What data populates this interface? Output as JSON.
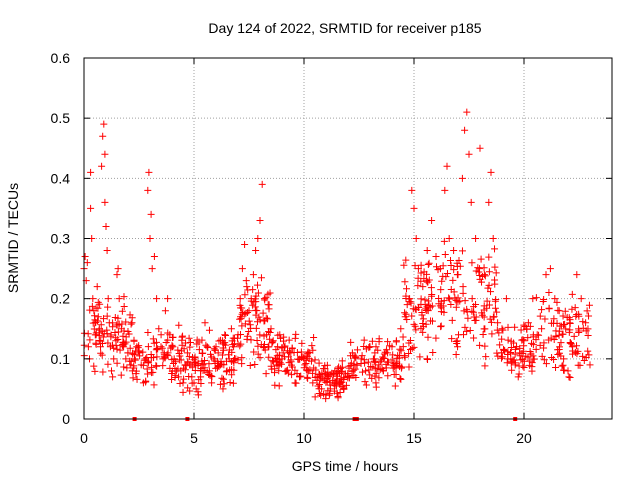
{
  "chart_data": {
    "type": "scatter",
    "title": "Day 124 of 2022, SRMTID for receiver p185",
    "xlabel": "GPS time / hours",
    "ylabel": "SRMTID / TECUs",
    "xlim": [
      0,
      24
    ],
    "ylim": [
      0,
      0.6
    ],
    "x_ticks": [
      0,
      5,
      10,
      15,
      20
    ],
    "x_tick_labels": [
      "0",
      "5",
      "10",
      "15",
      "20"
    ],
    "y_ticks": [
      0,
      0.1,
      0.2,
      0.3,
      0.4,
      0.5,
      0.6
    ],
    "y_tick_labels": [
      "0",
      "0.1",
      "0.2",
      "0.3",
      "0.4",
      "0.5",
      "0.6"
    ],
    "grid": true,
    "marker": "+",
    "series_color": "#ff0000",
    "grid_color": "#a0a0a0",
    "series": [
      {
        "name": "SRMTID",
        "points": [
          [
            0.0,
            0.25
          ],
          [
            0.05,
            0.27
          ],
          [
            0.1,
            0.23
          ],
          [
            0.15,
            0.26
          ],
          [
            0.2,
            0.12
          ],
          [
            0.25,
            0.1
          ],
          [
            0.3,
            0.41
          ],
          [
            0.3,
            0.35
          ],
          [
            0.35,
            0.3
          ],
          [
            0.4,
            0.2
          ],
          [
            0.45,
            0.18
          ],
          [
            0.5,
            0.16
          ],
          [
            0.55,
            0.14
          ],
          [
            0.6,
            0.22
          ],
          [
            0.65,
            0.17
          ],
          [
            0.7,
            0.15
          ],
          [
            0.75,
            0.12
          ],
          [
            0.8,
            0.42
          ],
          [
            0.85,
            0.47
          ],
          [
            0.9,
            0.49
          ],
          [
            0.95,
            0.44
          ],
          [
            0.95,
            0.36
          ],
          [
            1.0,
            0.32
          ],
          [
            1.05,
            0.28
          ],
          [
            1.1,
            0.2
          ],
          [
            1.15,
            0.16
          ],
          [
            1.2,
            0.12
          ],
          [
            1.25,
            0.08
          ],
          [
            1.3,
            0.07
          ],
          [
            1.35,
            0.1
          ],
          [
            1.45,
            0.13
          ],
          [
            1.5,
            0.24
          ],
          [
            1.55,
            0.25
          ],
          [
            1.6,
            0.2
          ],
          [
            1.7,
            0.15
          ],
          [
            1.8,
            0.12
          ],
          [
            1.9,
            0.1
          ],
          [
            2.0,
            0.11
          ],
          [
            2.1,
            0.09
          ],
          [
            2.2,
            0.08
          ],
          [
            2.3,
            0.1
          ],
          [
            2.4,
            0.12
          ],
          [
            2.5,
            0.11
          ],
          [
            2.6,
            0.09
          ],
          [
            2.7,
            0.06
          ],
          [
            2.8,
            0.1
          ],
          [
            2.9,
            0.38
          ],
          [
            2.95,
            0.41
          ],
          [
            3.0,
            0.3
          ],
          [
            3.05,
            0.34
          ],
          [
            3.1,
            0.25
          ],
          [
            3.2,
            0.27
          ],
          [
            3.3,
            0.2
          ],
          [
            3.4,
            0.15
          ],
          [
            3.5,
            0.12
          ],
          [
            3.6,
            0.1
          ],
          [
            3.7,
            0.18
          ],
          [
            3.8,
            0.2
          ],
          [
            3.9,
            0.14
          ],
          [
            4.0,
            0.12
          ],
          [
            4.1,
            0.1
          ],
          [
            4.2,
            0.08
          ],
          [
            4.3,
            0.07
          ],
          [
            4.4,
            0.08
          ],
          [
            4.5,
            0.06
          ],
          [
            4.6,
            0.09
          ],
          [
            4.7,
            0.11
          ],
          [
            4.8,
            0.09
          ],
          [
            4.9,
            0.07
          ],
          [
            5.0,
            0.06
          ],
          [
            5.1,
            0.05
          ],
          [
            5.2,
            0.04
          ],
          [
            5.3,
            0.07
          ],
          [
            5.4,
            0.09
          ],
          [
            5.5,
            0.16
          ],
          [
            5.6,
            0.12
          ],
          [
            5.7,
            0.08
          ],
          [
            5.8,
            0.06
          ],
          [
            5.9,
            0.1
          ],
          [
            6.0,
            0.12
          ],
          [
            6.1,
            0.11
          ],
          [
            6.2,
            0.09
          ],
          [
            6.3,
            0.13
          ],
          [
            6.4,
            0.14
          ],
          [
            6.5,
            0.08
          ],
          [
            6.6,
            0.1
          ],
          [
            6.7,
            0.15
          ],
          [
            6.8,
            0.12
          ],
          [
            6.9,
            0.1
          ],
          [
            7.0,
            0.14
          ],
          [
            7.1,
            0.2
          ],
          [
            7.2,
            0.25
          ],
          [
            7.3,
            0.29
          ],
          [
            7.4,
            0.22
          ],
          [
            7.5,
            0.18
          ],
          [
            7.6,
            0.2
          ],
          [
            7.7,
            0.24
          ],
          [
            7.8,
            0.28
          ],
          [
            7.9,
            0.3
          ],
          [
            8.0,
            0.33
          ],
          [
            8.1,
            0.39
          ],
          [
            8.2,
            0.2
          ],
          [
            8.3,
            0.14
          ],
          [
            8.4,
            0.12
          ],
          [
            8.5,
            0.15
          ],
          [
            8.6,
            0.13
          ],
          [
            8.7,
            0.1
          ],
          [
            8.8,
            0.12
          ],
          [
            8.9,
            0.14
          ],
          [
            9.0,
            0.1
          ],
          [
            9.2,
            0.08
          ],
          [
            9.4,
            0.11
          ],
          [
            9.6,
            0.06
          ],
          [
            9.8,
            0.07
          ],
          [
            10.0,
            0.1
          ],
          [
            10.2,
            0.08
          ],
          [
            10.4,
            0.06
          ],
          [
            10.6,
            0.07
          ],
          [
            10.8,
            0.05
          ],
          [
            11.0,
            0.04
          ],
          [
            11.2,
            0.05
          ],
          [
            11.4,
            0.08
          ],
          [
            11.6,
            0.06
          ],
          [
            11.8,
            0.05
          ],
          [
            12.0,
            0.07
          ],
          [
            12.2,
            0.11
          ],
          [
            12.4,
            0.09
          ],
          [
            12.6,
            0.1
          ],
          [
            12.8,
            0.08
          ],
          [
            13.0,
            0.12
          ],
          [
            13.2,
            0.1
          ],
          [
            13.4,
            0.09
          ],
          [
            13.6,
            0.08
          ],
          [
            13.8,
            0.11
          ],
          [
            14.0,
            0.12
          ],
          [
            14.2,
            0.13
          ],
          [
            14.4,
            0.15
          ],
          [
            14.6,
            0.17
          ],
          [
            14.8,
            0.2
          ],
          [
            14.9,
            0.38
          ],
          [
            15.0,
            0.35
          ],
          [
            15.1,
            0.3
          ],
          [
            15.2,
            0.25
          ],
          [
            15.4,
            0.22
          ],
          [
            15.6,
            0.28
          ],
          [
            15.8,
            0.33
          ],
          [
            16.0,
            0.27
          ],
          [
            16.2,
            0.25
          ],
          [
            16.4,
            0.38
          ],
          [
            16.5,
            0.42
          ],
          [
            16.6,
            0.3
          ],
          [
            16.8,
            0.28
          ],
          [
            17.0,
            0.24
          ],
          [
            17.2,
            0.4
          ],
          [
            17.3,
            0.48
          ],
          [
            17.4,
            0.51
          ],
          [
            17.5,
            0.44
          ],
          [
            17.6,
            0.36
          ],
          [
            17.8,
            0.3
          ],
          [
            18.0,
            0.45
          ],
          [
            18.2,
            0.24
          ],
          [
            18.4,
            0.36
          ],
          [
            18.5,
            0.41
          ],
          [
            18.6,
            0.3
          ],
          [
            18.8,
            0.16
          ],
          [
            19.0,
            0.15
          ],
          [
            19.2,
            0.2
          ],
          [
            19.4,
            0.1
          ],
          [
            19.6,
            0.09
          ],
          [
            19.8,
            0.11
          ],
          [
            20.0,
            0.13
          ],
          [
            20.2,
            0.16
          ],
          [
            20.4,
            0.2
          ],
          [
            20.6,
            0.14
          ],
          [
            20.8,
            0.15
          ],
          [
            21.0,
            0.24
          ],
          [
            21.2,
            0.25
          ],
          [
            21.4,
            0.2
          ],
          [
            21.6,
            0.18
          ],
          [
            21.8,
            0.1
          ],
          [
            22.0,
            0.08
          ],
          [
            22.2,
            0.12
          ],
          [
            22.4,
            0.24
          ],
          [
            22.6,
            0.2
          ],
          [
            22.8,
            0.16
          ],
          [
            23.0,
            0.09
          ]
        ]
      }
    ],
    "dense_bands": [
      {
        "x_from": 0.0,
        "x_to": 2.2,
        "y_lo": 0.06,
        "y_hi": 0.22,
        "count": 90
      },
      {
        "x_from": 2.2,
        "x_to": 4.5,
        "y_lo": 0.05,
        "y_hi": 0.16,
        "count": 90
      },
      {
        "x_from": 4.5,
        "x_to": 7.0,
        "y_lo": 0.04,
        "y_hi": 0.15,
        "count": 110
      },
      {
        "x_from": 7.0,
        "x_to": 8.5,
        "y_lo": 0.07,
        "y_hi": 0.25,
        "count": 80
      },
      {
        "x_from": 8.5,
        "x_to": 10.5,
        "y_lo": 0.05,
        "y_hi": 0.15,
        "count": 90
      },
      {
        "x_from": 10.5,
        "x_to": 12.0,
        "y_lo": 0.03,
        "y_hi": 0.1,
        "count": 80
      },
      {
        "x_from": 12.0,
        "x_to": 14.5,
        "y_lo": 0.05,
        "y_hi": 0.14,
        "count": 100
      },
      {
        "x_from": 14.5,
        "x_to": 16.0,
        "y_lo": 0.08,
        "y_hi": 0.28,
        "count": 80
      },
      {
        "x_from": 16.0,
        "x_to": 18.8,
        "y_lo": 0.08,
        "y_hi": 0.3,
        "count": 120
      },
      {
        "x_from": 18.8,
        "x_to": 20.5,
        "y_lo": 0.06,
        "y_hi": 0.16,
        "count": 70
      },
      {
        "x_from": 20.5,
        "x_to": 23.0,
        "y_lo": 0.06,
        "y_hi": 0.22,
        "count": 100
      }
    ],
    "zero_points": [
      2.3,
      4.7,
      12.3,
      12.4,
      19.6
    ]
  }
}
